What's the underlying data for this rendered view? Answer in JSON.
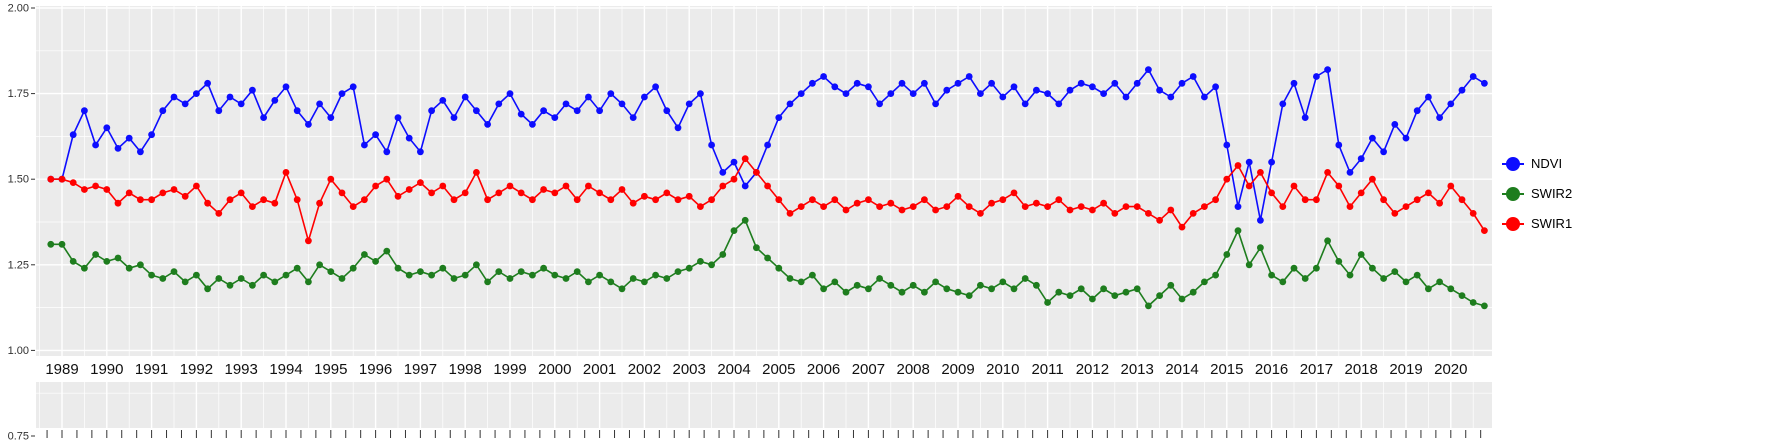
{
  "figure": {
    "background": "#FFFFFF",
    "panel_color": "#EBEBEB",
    "grid_color": "#FFFFFF",
    "tick_color": "#333333",
    "axis_text_color": "#303030",
    "year_text_color": "#101010"
  },
  "chart_data": {
    "type": "line",
    "title": "",
    "xlabel": "",
    "ylabel": "",
    "grid": true,
    "legend_position": "right",
    "ylim": [
      0.75,
      2.0
    ],
    "xlim": [
      1988.4,
      2020.9
    ],
    "y_ticks": [
      2.0,
      1.75,
      1.5,
      1.25,
      1.0,
      0.75
    ],
    "y_tick_labels": [
      "2.00",
      "1.75",
      "1.50",
      "1.25",
      "1.00",
      "0.75"
    ],
    "x_tick_labels": [
      "1989",
      "1990",
      "1991",
      "1992",
      "1993",
      "1994",
      "1995",
      "1996",
      "1997",
      "1998",
      "1999",
      "2000",
      "2001",
      "2002",
      "2003",
      "2004",
      "2005",
      "2006",
      "2007",
      "2008",
      "2009",
      "2010",
      "2011",
      "2012",
      "2013",
      "2014",
      "2015",
      "2016",
      "2017",
      "2018",
      "2019",
      "2020"
    ],
    "x": [
      1988.75,
      1989,
      1989.25,
      1989.5,
      1989.75,
      1990,
      1990.25,
      1990.5,
      1990.75,
      1991,
      1991.25,
      1991.5,
      1991.75,
      1992,
      1992.25,
      1992.5,
      1992.75,
      1993,
      1993.25,
      1993.5,
      1993.75,
      1994,
      1994.25,
      1994.5,
      1994.75,
      1995,
      1995.25,
      1995.5,
      1995.75,
      1996,
      1996.25,
      1996.5,
      1996.75,
      1997,
      1997.25,
      1997.5,
      1997.75,
      1998,
      1998.25,
      1998.5,
      1998.75,
      1999,
      1999.25,
      1999.5,
      1999.75,
      2000,
      2000.25,
      2000.5,
      2000.75,
      2001,
      2001.25,
      2001.5,
      2001.75,
      2002,
      2002.25,
      2002.5,
      2002.75,
      2003,
      2003.25,
      2003.5,
      2003.75,
      2004,
      2004.25,
      2004.5,
      2004.75,
      2005,
      2005.25,
      2005.5,
      2005.75,
      2006,
      2006.25,
      2006.5,
      2006.75,
      2007,
      2007.25,
      2007.5,
      2007.75,
      2008,
      2008.25,
      2008.5,
      2008.75,
      2009,
      2009.25,
      2009.5,
      2009.75,
      2010,
      2010.25,
      2010.5,
      2010.75,
      2011,
      2011.25,
      2011.5,
      2011.75,
      2012,
      2012.25,
      2012.5,
      2012.75,
      2013,
      2013.25,
      2013.5,
      2013.75,
      2014,
      2014.25,
      2014.5,
      2014.75,
      2015,
      2015.25,
      2015.5,
      2015.75,
      2016,
      2016.25,
      2016.5,
      2016.75,
      2017,
      2017.25,
      2017.5,
      2017.75,
      2018,
      2018.25,
      2018.5,
      2018.75,
      2019,
      2019.25,
      2019.5,
      2019.75,
      2020,
      2020.25,
      2020.5,
      2020.75
    ],
    "series": [
      {
        "name": "NDVI",
        "color": "#0D0DFF",
        "values": [
          1.5,
          1.5,
          1.63,
          1.7,
          1.6,
          1.65,
          1.59,
          1.62,
          1.58,
          1.63,
          1.7,
          1.74,
          1.72,
          1.75,
          1.78,
          1.7,
          1.74,
          1.72,
          1.76,
          1.68,
          1.73,
          1.77,
          1.7,
          1.66,
          1.72,
          1.68,
          1.75,
          1.77,
          1.6,
          1.63,
          1.58,
          1.68,
          1.62,
          1.58,
          1.7,
          1.73,
          1.68,
          1.74,
          1.7,
          1.66,
          1.72,
          1.75,
          1.69,
          1.66,
          1.7,
          1.68,
          1.72,
          1.7,
          1.74,
          1.7,
          1.75,
          1.72,
          1.68,
          1.74,
          1.77,
          1.7,
          1.65,
          1.72,
          1.75,
          1.6,
          1.52,
          1.55,
          1.48,
          1.52,
          1.6,
          1.68,
          1.72,
          1.75,
          1.78,
          1.8,
          1.77,
          1.75,
          1.78,
          1.77,
          1.72,
          1.75,
          1.78,
          1.75,
          1.78,
          1.72,
          1.76,
          1.78,
          1.8,
          1.75,
          1.78,
          1.74,
          1.77,
          1.72,
          1.76,
          1.75,
          1.72,
          1.76,
          1.78,
          1.77,
          1.75,
          1.78,
          1.74,
          1.78,
          1.82,
          1.76,
          1.74,
          1.78,
          1.8,
          1.74,
          1.77,
          1.6,
          1.42,
          1.55,
          1.38,
          1.55,
          1.72,
          1.78,
          1.68,
          1.8,
          1.82,
          1.6,
          1.52,
          1.56,
          1.62,
          1.58,
          1.66,
          1.62,
          1.7,
          1.74,
          1.68,
          1.72,
          1.76,
          1.8,
          1.78
        ]
      },
      {
        "name": "SWIR2",
        "color": "#1E7D1E",
        "values": [
          1.31,
          1.31,
          1.26,
          1.24,
          1.28,
          1.26,
          1.27,
          1.24,
          1.25,
          1.22,
          1.21,
          1.23,
          1.2,
          1.22,
          1.18,
          1.21,
          1.19,
          1.21,
          1.19,
          1.22,
          1.2,
          1.22,
          1.24,
          1.2,
          1.25,
          1.23,
          1.21,
          1.24,
          1.28,
          1.26,
          1.29,
          1.24,
          1.22,
          1.23,
          1.22,
          1.24,
          1.21,
          1.22,
          1.25,
          1.2,
          1.23,
          1.21,
          1.23,
          1.22,
          1.24,
          1.22,
          1.21,
          1.23,
          1.2,
          1.22,
          1.2,
          1.18,
          1.21,
          1.2,
          1.22,
          1.21,
          1.23,
          1.24,
          1.26,
          1.25,
          1.28,
          1.35,
          1.38,
          1.3,
          1.27,
          1.24,
          1.21,
          1.2,
          1.22,
          1.18,
          1.2,
          1.17,
          1.19,
          1.18,
          1.21,
          1.19,
          1.17,
          1.19,
          1.17,
          1.2,
          1.18,
          1.17,
          1.16,
          1.19,
          1.18,
          1.2,
          1.18,
          1.21,
          1.19,
          1.14,
          1.17,
          1.16,
          1.18,
          1.15,
          1.18,
          1.16,
          1.17,
          1.18,
          1.13,
          1.16,
          1.19,
          1.15,
          1.17,
          1.2,
          1.22,
          1.28,
          1.35,
          1.25,
          1.3,
          1.22,
          1.2,
          1.24,
          1.21,
          1.24,
          1.32,
          1.26,
          1.22,
          1.28,
          1.24,
          1.21,
          1.23,
          1.2,
          1.22,
          1.18,
          1.2,
          1.18,
          1.16,
          1.14,
          1.13
        ]
      },
      {
        "name": "SWIR1",
        "color": "#FF0000",
        "values": [
          1.5,
          1.5,
          1.49,
          1.47,
          1.48,
          1.47,
          1.43,
          1.46,
          1.44,
          1.44,
          1.46,
          1.47,
          1.45,
          1.48,
          1.43,
          1.4,
          1.44,
          1.46,
          1.42,
          1.44,
          1.43,
          1.52,
          1.44,
          1.32,
          1.43,
          1.5,
          1.46,
          1.42,
          1.44,
          1.48,
          1.5,
          1.45,
          1.47,
          1.49,
          1.46,
          1.48,
          1.44,
          1.46,
          1.52,
          1.44,
          1.46,
          1.48,
          1.46,
          1.44,
          1.47,
          1.46,
          1.48,
          1.44,
          1.48,
          1.46,
          1.44,
          1.47,
          1.43,
          1.45,
          1.44,
          1.46,
          1.44,
          1.45,
          1.42,
          1.44,
          1.48,
          1.5,
          1.56,
          1.52,
          1.48,
          1.44,
          1.4,
          1.42,
          1.44,
          1.42,
          1.44,
          1.41,
          1.43,
          1.44,
          1.42,
          1.43,
          1.41,
          1.42,
          1.44,
          1.41,
          1.42,
          1.45,
          1.42,
          1.4,
          1.43,
          1.44,
          1.46,
          1.42,
          1.43,
          1.42,
          1.44,
          1.41,
          1.42,
          1.41,
          1.43,
          1.4,
          1.42,
          1.42,
          1.4,
          1.38,
          1.41,
          1.36,
          1.4,
          1.42,
          1.44,
          1.5,
          1.54,
          1.48,
          1.52,
          1.46,
          1.42,
          1.48,
          1.44,
          1.44,
          1.52,
          1.48,
          1.42,
          1.46,
          1.5,
          1.44,
          1.4,
          1.42,
          1.44,
          1.46,
          1.43,
          1.48,
          1.44,
          1.4,
          1.35
        ]
      }
    ]
  }
}
